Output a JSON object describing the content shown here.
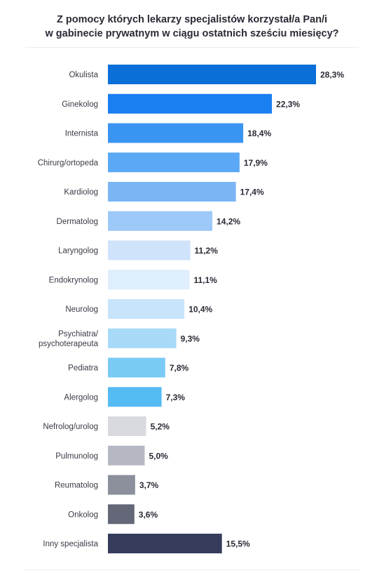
{
  "chart_data": {
    "type": "bar",
    "orientation": "horizontal",
    "title_lines": [
      "Z pomocy których lekarzy specjalistów korzystał/a Pan/i",
      "w gabinecie prywatnym w ciągu ostatnich sześciu miesięcy?"
    ],
    "categories": [
      [
        "Okulista"
      ],
      [
        "Ginekolog"
      ],
      [
        "Internista"
      ],
      [
        "Chirurg/ortopeda"
      ],
      [
        "Kardiolog"
      ],
      [
        "Dermatolog"
      ],
      [
        "Laryngolog"
      ],
      [
        "Endokrynolog"
      ],
      [
        "Neurolog"
      ],
      [
        "Psychiatra/",
        "psychoterapeuta"
      ],
      [
        "Pediatra"
      ],
      [
        "Alergolog"
      ],
      [
        "Nefrolog/urolog"
      ],
      [
        "Pulmunolog"
      ],
      [
        "Reumatolog"
      ],
      [
        "Onkolog"
      ],
      [
        "Inny specjalista"
      ]
    ],
    "values": [
      28.3,
      22.3,
      18.4,
      17.9,
      17.4,
      14.2,
      11.2,
      11.1,
      10.4,
      9.3,
      7.8,
      7.3,
      5.2,
      5.0,
      3.7,
      3.6,
      15.5
    ],
    "value_labels": [
      "28,3%",
      "22,3%",
      "18,4%",
      "17,9%",
      "17,4%",
      "14,2%",
      "11,2%",
      "11,1%",
      "10,4%",
      "9,3%",
      "7,8%",
      "7,3%",
      "5,2%",
      "5,0%",
      "3,7%",
      "3,6%",
      "15,5%"
    ],
    "colors": [
      "#0a6fd6",
      "#1a7ff0",
      "#3a95f2",
      "#5aa8f6",
      "#79b6f3",
      "#9cc9f8",
      "#cfe3fb",
      "#dfeefc",
      "#c7e4fb",
      "#a6daf8",
      "#79cbf6",
      "#55bbf3",
      "#d8dadf",
      "#b5b8c2",
      "#8c8f9c",
      "#636778",
      "#363c5c"
    ],
    "unit": "%",
    "xlim": [
      0,
      28.3
    ],
    "axis_visible": false,
    "grid": false,
    "legend": "none"
  }
}
